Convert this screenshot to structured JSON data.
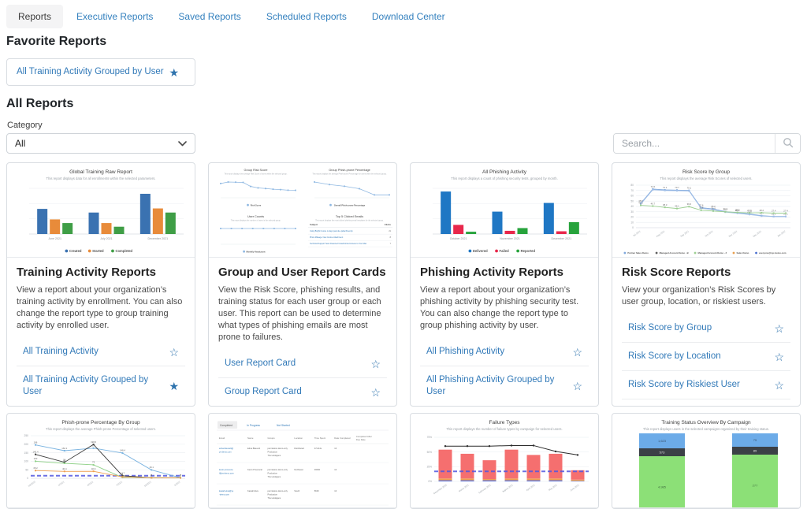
{
  "tabs": [
    {
      "label": "Reports",
      "active": true
    },
    {
      "label": "Executive Reports",
      "active": false
    },
    {
      "label": "Saved Reports",
      "active": false
    },
    {
      "label": "Scheduled Reports",
      "active": false
    },
    {
      "label": "Download Center",
      "active": false
    }
  ],
  "favorites": {
    "heading": "Favorite Reports",
    "items": [
      {
        "label": "All Training Activity Grouped by User",
        "starred": true,
        "star_icon": "★"
      }
    ]
  },
  "all_reports": {
    "heading": "All Reports",
    "category_label": "Category",
    "category_value": "All",
    "search_placeholder": "Search..."
  },
  "colors": {
    "link_blue": "#3179b8",
    "star_blue": "#2e73ad"
  },
  "cards": [
    {
      "title": "Training Activity Reports",
      "description": "View a report about your organization’s training activity by enrollment. You can also change the report type to group training activity by enrolled user.",
      "links": [
        {
          "label": "All Training Activity",
          "starred": false,
          "star_icon": "☆"
        },
        {
          "label": "All Training Activity Grouped by User",
          "starred": true,
          "star_icon": "★"
        }
      ]
    },
    {
      "title": "Group and User Report Cards",
      "description": "View the Risk Score, phishing results, and training status for each user group or each user. This report can be used to determine what types of phishing emails are most prone to failures.",
      "links": [
        {
          "label": "User Report Card",
          "starred": false,
          "star_icon": "☆"
        },
        {
          "label": "Group Report Card",
          "starred": false,
          "star_icon": "☆"
        }
      ]
    },
    {
      "title": "Phishing Activity Reports",
      "description": "View a report about your organization’s phishing activity by phishing security test. You can also change the report type to group phishing activity by user.",
      "links": [
        {
          "label": "All Phishing Activity",
          "starred": false,
          "star_icon": "☆"
        },
        {
          "label": "All Phishing Activity Grouped by User",
          "starred": false,
          "star_icon": "☆"
        }
      ]
    },
    {
      "title": "Risk Score Reports",
      "description": "View your organization’s Risk Scores by user group, location, or riskiest users.",
      "links": [
        {
          "label": "Risk Score by Group",
          "starred": false,
          "star_icon": "☆"
        },
        {
          "label": "Risk Score by Location",
          "starred": false,
          "star_icon": "☆"
        },
        {
          "label": "Risk Score by Riskiest User",
          "starred": false,
          "star_icon": "☆"
        }
      ]
    }
  ],
  "chart_data": [
    {
      "type": "bar",
      "title": "Global Training Raw Report",
      "subtitle": "This report displays data for all enrollments within the selected parameters.",
      "categories": [
        "June 2021",
        "July 2021",
        "December 2021"
      ],
      "ylim": [
        0,
        100
      ],
      "series": [
        {
          "name": "Created",
          "color": "#3a72b1",
          "values": [
            55,
            47,
            88
          ]
        },
        {
          "name": "Started",
          "color": "#e88b3a",
          "values": [
            32,
            24,
            56
          ]
        },
        {
          "name": "Completed",
          "color": "#3f9e46",
          "values": [
            24,
            16,
            47
          ]
        }
      ]
    },
    {
      "type": "multi-panel",
      "panels": [
        {
          "type": "line",
          "title": "Group Risk Score",
          "subtitle": "This report displays the average Risk Score of users within the selected group.",
          "legend": "Risk Score",
          "color": "#8fb8e2",
          "values": [
            40,
            44.1,
            43.6,
            43,
            31.8,
            27.6,
            25.9,
            24,
            22.8,
            21.2,
            20.9
          ]
        },
        {
          "type": "line",
          "title": "Group Phish-prone Percentage",
          "subtitle": "This report displays the average Phish-prone Percentage for users within the selected group.",
          "legend": "Overall Phish-prone Percentage",
          "color": "#8fb8e2",
          "values": [
            43,
            36,
            31.5,
            24.7,
            7.9,
            7.9
          ]
        },
        {
          "type": "line",
          "title": "User Counts",
          "subtitle": "This report displays the number of users in the selected group.",
          "legend": "Monthly Headcount",
          "color": "#8fb8e2",
          "values": [
            31,
            31,
            31,
            31,
            31,
            31,
            31,
            31
          ]
        },
        {
          "type": "table",
          "title": "Top 5 Clicked Emails",
          "subtitle": "This report displays the most clicked phishing email templates for the selected group.",
          "headers": [
            "Subject",
            "Clicks"
          ],
          "rows": [
            [
              "Using Bright Invoice is days past due (attachments)",
              "21"
            ],
            [
              "Photo Mileage: New Invoice Attachment",
              "8"
            ],
            [
              "Technical Support Team Detected Unauthorized Access to Your Mac",
              "7"
            ]
          ]
        }
      ]
    },
    {
      "type": "bar",
      "title": "All Phishing Activity",
      "subtitle": "This report displays a count of phishing security tests, grouped by month.",
      "categories": [
        "October 2021",
        "November 2021",
        "December 2021"
      ],
      "ylim": [
        0,
        100
      ],
      "series": [
        {
          "name": "Delivered",
          "color": "#1f77c4",
          "values": [
            93,
            49,
            68
          ]
        },
        {
          "name": "Failed",
          "color": "#e8274b",
          "values": [
            20,
            7,
            6
          ]
        },
        {
          "name": "Reported",
          "color": "#27a33c",
          "values": [
            5,
            13,
            26
          ]
        }
      ]
    },
    {
      "type": "line",
      "title": "Risk Score by Group",
      "subtitle": "This report displays the average Risk Scores of selected users.",
      "ylim": [
        0,
        80
      ],
      "yticks": [
        0,
        10,
        20,
        30,
        40,
        50,
        60,
        70,
        80
      ],
      "point_labels": true,
      "xlabels": [
        "Jul 2021",
        "Aug 2021",
        "Sep 2021",
        "Oct 2021",
        "Nov 2021",
        "Dec 2021",
        "Jan 2022"
      ],
      "series": [
        {
          "name": "Partner Sales Demo",
          "color": "#7fa8dc",
          "values": [
            45.6,
            72.6,
            71.1,
            70.7,
            70.1,
            37.6,
            35.2,
            30.2,
            28.1,
            25.8,
            22.7,
            21.1,
            21.1
          ]
        },
        {
          "name": "Managed Account Demo - B",
          "color": "#a3c0e8",
          "values": [
            44.4,
            71.4,
            70,
            69.5,
            69,
            36.5,
            34,
            29.3,
            27.2,
            24.8,
            21.9,
            21.1,
            21.1
          ],
          "labels": false
        },
        {
          "name": "Sales Demo",
          "color": "#9ccf92",
          "values": [
            42.2,
            40.7,
            38.3,
            36.1,
            39.6,
            32.8,
            31.4,
            29.9,
            28.8,
            27.9,
            28.2,
            27.4,
            27.4
          ]
        }
      ],
      "legend": [
        {
          "name": "Partner Sales Demo",
          "color": "#7fa8dc"
        },
        {
          "name": "Managed Account Demo - B",
          "color": "#5f5f5f"
        },
        {
          "name": "Managed Account Demo - Z",
          "color": "#9ccf92"
        },
        {
          "name": "Sales Demo",
          "color": "#e8a050"
        },
        {
          "name": "everyone@xyz-demo.com",
          "color": "#4a6fd0"
        }
      ]
    },
    {
      "type": "line",
      "title": "Phish-prone Percentage By Group",
      "subtitle": "This report displays the average Phish-prone Percentage of selected users.",
      "ylim": [
        0,
        250
      ],
      "yticks": [
        0,
        50,
        100,
        150,
        200,
        250
      ],
      "point_labels": true,
      "ref_line": {
        "value": 15,
        "color": "#5257e0"
      },
      "xlabels": [
        "10/2020",
        "1/2021",
        "4/2021",
        "7/2021",
        "10/2021",
        "1/2022"
      ],
      "series": [
        {
          "name": "",
          "color": "#7ab3e0",
          "values": [
            196,
            162.1,
            177,
            148.4,
            49.1,
            3
          ]
        },
        {
          "name": "",
          "color": "#3a3a3a",
          "values": [
            140.4,
            94,
            198.6,
            14.7,
            3,
            3
          ]
        },
        {
          "name": "",
          "color": "#90d189",
          "values": [
            100,
            88,
            79,
            5,
            3,
            2
          ]
        },
        {
          "name": "",
          "color": "#f0a050",
          "values": [
            45.2,
            40.4,
            40.9,
            8,
            3,
            2
          ]
        }
      ]
    },
    {
      "type": "table",
      "tabs": [
        "Completed",
        "In Progress",
        "Not Started"
      ],
      "active_tab": "Completed",
      "headers": [
        "Email",
        "Name",
        "Groups",
        "Location",
        "Time Spent",
        "Date Completed",
        "Completed After Due Date"
      ],
      "col_widths": [
        0.17,
        0.12,
        0.16,
        0.12,
        0.12,
        0.13,
        0.18
      ],
      "rows": [
        [
          "edna.blauvelt@ys-demo.com",
          "Edna Blauvelt",
          "permission-demo-only, Production, The Hooligans",
          "Distributed",
          "47m44s",
          "10",
          ""
        ],
        [
          "kevin.provencal@ys-demo.com",
          "Kevin Provencal",
          "permission-demo-only, Production, The Hooligans",
          "Northeast",
          "93h00",
          "10",
          ""
        ],
        [
          "kasiah.elva@ys-demo.com",
          "Kasiah Elva",
          "permission-demo-only, Production, The Hooligans",
          "South",
          "8h00",
          "10",
          ""
        ]
      ]
    },
    {
      "type": "bar-line",
      "title": "Failure Types",
      "subtitle": "This report displays the number of failure types by campaign for selected users.",
      "ylim": [
        0,
        75
      ],
      "yticks": [
        "0%",
        "25%",
        "50%",
        "75%"
      ],
      "categories": [
        "December 2020",
        "March 2021",
        "February 2021",
        "August 2021",
        "April 2021",
        "May 2021",
        "June 2021"
      ],
      "stack": [
        {
          "name": "",
          "color": "#6b7bd8",
          "values": [
            2,
            2,
            2,
            2,
            2,
            2,
            1
          ]
        },
        {
          "name": "",
          "color": "#f0a050",
          "values": [
            3,
            3,
            2,
            3,
            3,
            3,
            2
          ]
        },
        {
          "name": "",
          "color": "#f56f6f",
          "values": [
            49,
            42,
            32,
            49,
            40,
            42,
            16
          ]
        }
      ],
      "line": {
        "color": "#2b2b2b",
        "values": [
          60,
          60,
          60,
          61,
          61,
          51,
          45
        ]
      },
      "ref_line": {
        "value": 17,
        "color": "#5257e0"
      }
    },
    {
      "type": "stacked-columns",
      "title": "Training Status Overview By Campaign",
      "subtitle": "This report displays users in the selected campaigns organized by their training status.",
      "columns": [
        {
          "segments": [
            {
              "label": "1,623",
              "color": "#6cabe8",
              "h": 19,
              "text": "#38536e"
            },
            {
              "label": "573",
              "color": "#3b4046",
              "h": 10,
              "text": "#e8e8e8"
            },
            {
              "label": "4,985",
              "color": "#8ce077",
              "h": 78,
              "text": "#3f6e3f"
            }
          ]
        },
        {
          "segments": [
            {
              "label": "75",
              "color": "#6cabe8",
              "h": 17,
              "text": "#38536e"
            },
            {
              "label": "89",
              "color": "#3b4046",
              "h": 10,
              "text": "#e8e8e8"
            },
            {
              "label": "277",
              "color": "#8ce077",
              "h": 78,
              "text": "#3f6e3f"
            }
          ]
        }
      ]
    }
  ]
}
